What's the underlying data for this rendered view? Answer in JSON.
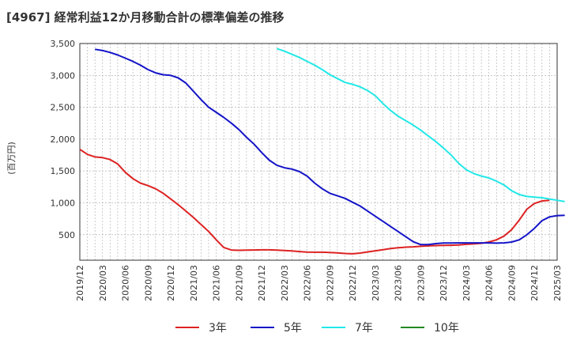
{
  "chart_data": {
    "type": "line",
    "title": "[4967]  経常利益12か月移動合計の標準偏差の推移",
    "ylabel": "(百万円)",
    "xlabel": "",
    "ylim": [
      100,
      3500
    ],
    "y_ticks": [
      "500",
      "1,000",
      "1,500",
      "2,000",
      "2,500",
      "3,000",
      "3,500"
    ],
    "y_tick_values": [
      500,
      1000,
      1500,
      2000,
      2500,
      3000,
      3500
    ],
    "x_ticks": [
      "2019/12",
      "2020/03",
      "2020/06",
      "2020/09",
      "2020/12",
      "2021/03",
      "2021/06",
      "2021/09",
      "2021/12",
      "2022/03",
      "2022/06",
      "2022/09",
      "2022/12",
      "2023/03",
      "2023/06",
      "2023/09",
      "2023/12",
      "2024/03",
      "2024/06",
      "2024/09",
      "2024/12",
      "2025/03"
    ],
    "x_start": "2019/12",
    "x_end": "2025/03",
    "grid": true,
    "legend_position": "bottom",
    "series": [
      {
        "name": "3年",
        "color": "#dd2222",
        "start": "2019/12",
        "values": [
          1840,
          1760,
          1720,
          1710,
          1680,
          1610,
          1480,
          1380,
          1310,
          1270,
          1220,
          1150,
          1060,
          970,
          870,
          770,
          660,
          550,
          420,
          300,
          260,
          255,
          258,
          260,
          262,
          262,
          258,
          252,
          245,
          235,
          228,
          225,
          225,
          222,
          215,
          205,
          200,
          212,
          230,
          248,
          265,
          282,
          295,
          305,
          310,
          318,
          325,
          330,
          332,
          335,
          340,
          350,
          355,
          365,
          385,
          420,
          480,
          580,
          730,
          900,
          990,
          1030,
          1040
        ]
      },
      {
        "name": "5年",
        "color": "#1414c8",
        "start": "2020/02",
        "values": [
          3410,
          3390,
          3360,
          3320,
          3270,
          3220,
          3160,
          3090,
          3040,
          3010,
          3000,
          2960,
          2880,
          2750,
          2620,
          2500,
          2420,
          2340,
          2250,
          2150,
          2030,
          1920,
          1790,
          1670,
          1590,
          1550,
          1530,
          1490,
          1420,
          1310,
          1220,
          1150,
          1110,
          1070,
          1010,
          950,
          870,
          790,
          710,
          630,
          550,
          470,
          390,
          345,
          345,
          360,
          370,
          370,
          372,
          372,
          372,
          372,
          372,
          368,
          372,
          385,
          420,
          500,
          600,
          720,
          780,
          800,
          805
        ]
      },
      {
        "name": "7年",
        "color": "#22e8e8",
        "start": "2022/02",
        "values": [
          3420,
          3380,
          3330,
          3280,
          3220,
          3160,
          3090,
          3010,
          2950,
          2890,
          2860,
          2820,
          2760,
          2680,
          2560,
          2450,
          2360,
          2290,
          2220,
          2140,
          2050,
          1960,
          1860,
          1750,
          1620,
          1520,
          1460,
          1420,
          1390,
          1340,
          1280,
          1190,
          1130,
          1100,
          1090,
          1080,
          1060,
          1040,
          1020
        ]
      },
      {
        "name": "10年",
        "color": "#228822",
        "start": "2024/12",
        "values": []
      }
    ]
  }
}
